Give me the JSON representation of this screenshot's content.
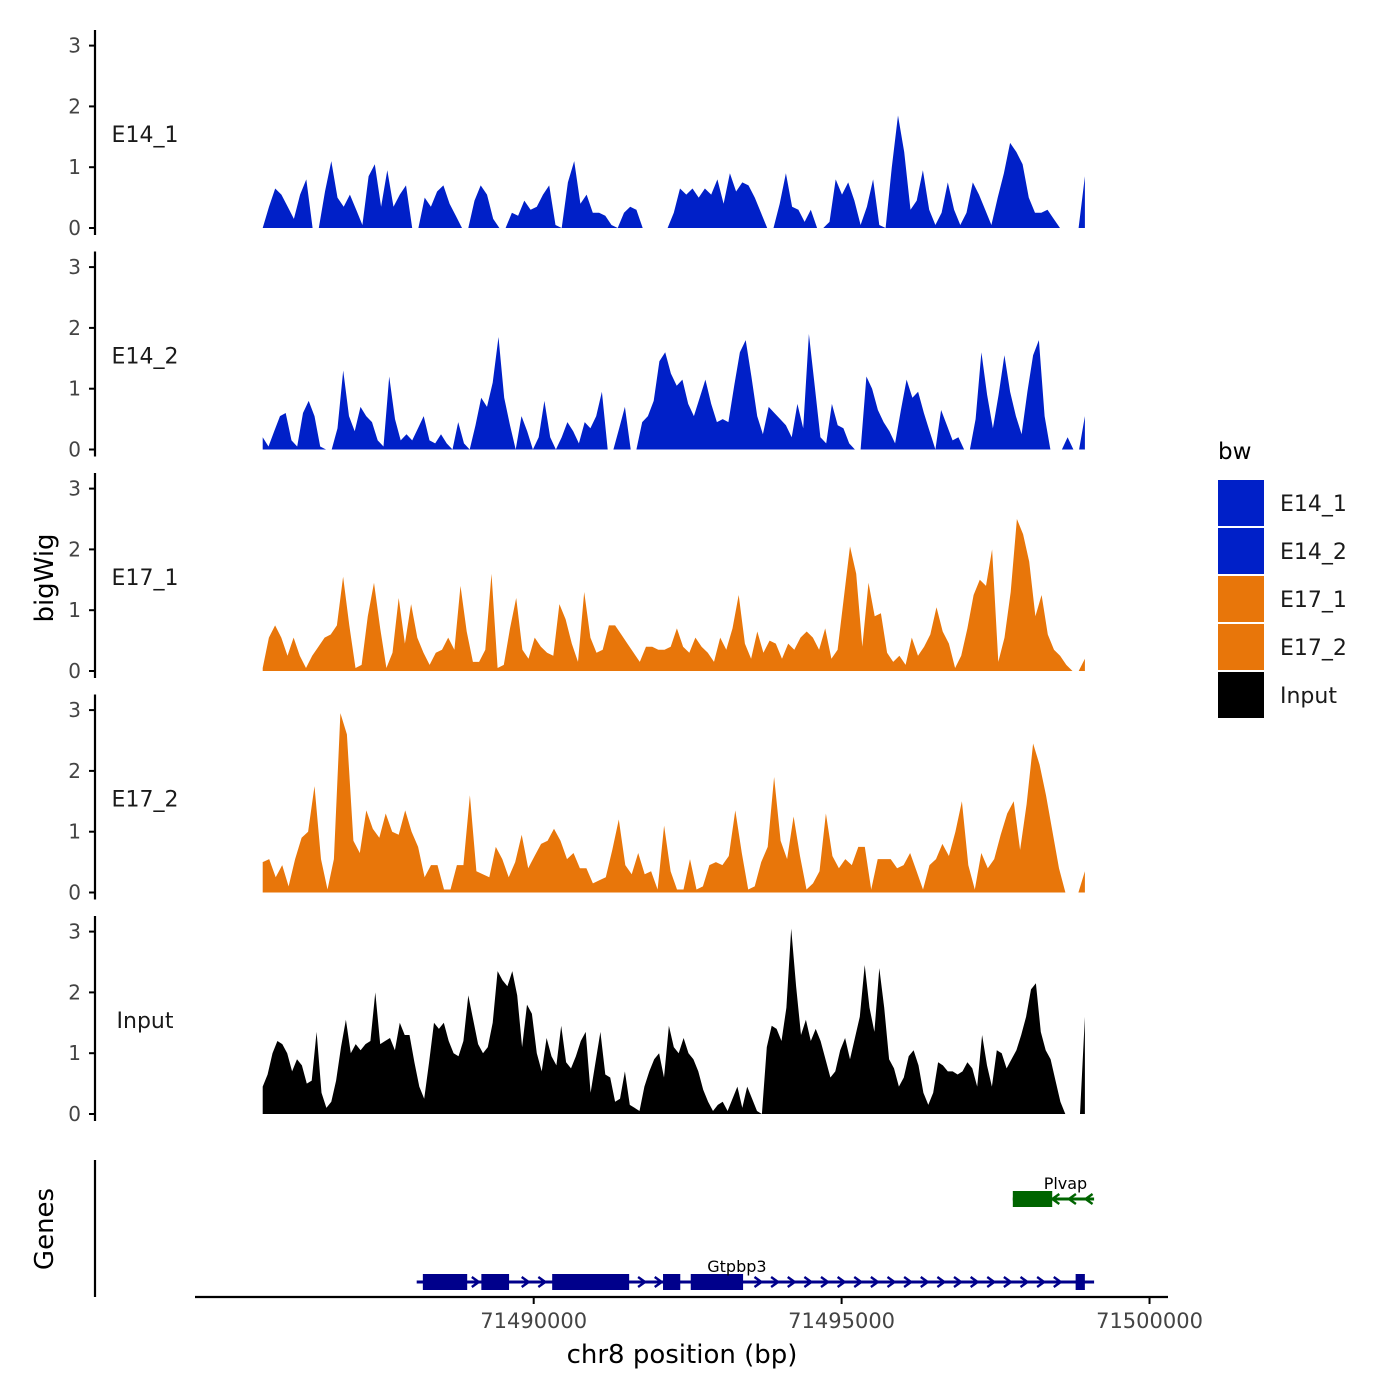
{
  "chart_data": {
    "type": "area",
    "chromosome": "chr8",
    "x_label": "chr8 position (bp)",
    "y_label": "bigWig",
    "genes_label": "Genes",
    "legend_title": "bw",
    "legend_position": "right",
    "x_domain": [
      71484500,
      71500300
    ],
    "x_ticks": [
      {
        "value": 71490000,
        "label": "71490000"
      },
      {
        "value": 71495000,
        "label": "71495000"
      },
      {
        "value": 71500000,
        "label": "71500000"
      }
    ],
    "y_ticks": [
      {
        "value": 0,
        "label": "0"
      },
      {
        "value": 1,
        "label": "1"
      },
      {
        "value": 2,
        "label": "2"
      },
      {
        "value": 3,
        "label": "3"
      }
    ],
    "ylim": [
      0,
      3.2
    ],
    "colors": {
      "E14": "#0020c8",
      "E17": "#e8760a",
      "Input": "#000000",
      "gene_plus": "#00008b",
      "gene_minus": "#006400"
    },
    "tracks": [
      {
        "name": "E14_1",
        "color": "#0020c8",
        "x_start": 71485600,
        "x_end": 71498950,
        "values": [
          0,
          0.35,
          0.65,
          0.55,
          0.35,
          0.15,
          0.55,
          0.8,
          0,
          0,
          0.6,
          1.1,
          0.5,
          0.35,
          0.55,
          0.3,
          0.05,
          0.85,
          1.05,
          0.35,
          0.95,
          0.35,
          0.55,
          0.7,
          0,
          0,
          0.5,
          0.35,
          0.6,
          0.7,
          0.4,
          0.2,
          0,
          0,
          0.45,
          0.7,
          0.55,
          0.15,
          0,
          0,
          0.25,
          0.2,
          0.45,
          0.3,
          0.35,
          0.55,
          0.7,
          0.05,
          0,
          0.75,
          1.1,
          0.4,
          0.55,
          0.25,
          0.25,
          0.2,
          0.05,
          0,
          0.25,
          0.35,
          0.3,
          0,
          0,
          0,
          0,
          0,
          0.25,
          0.65,
          0.55,
          0.65,
          0.5,
          0.65,
          0.55,
          0.8,
          0.4,
          0.9,
          0.6,
          0.75,
          0.7,
          0.5,
          0.25,
          0,
          0,
          0.4,
          0.9,
          0.35,
          0.3,
          0.1,
          0.3,
          0,
          0,
          0.1,
          0.8,
          0.55,
          0.75,
          0.45,
          0.05,
          0.35,
          0.8,
          0.05,
          0,
          1.0,
          1.85,
          1.25,
          0.3,
          0.45,
          0.95,
          0.3,
          0.05,
          0.25,
          0.75,
          0.3,
          0.05,
          0.25,
          0.75,
          0.55,
          0.3,
          0.05,
          0.5,
          0.9,
          1.4,
          1.25,
          1.05,
          0.5,
          0.25,
          0.25,
          0.3,
          0.15,
          0,
          0,
          0,
          0,
          0.85
        ]
      },
      {
        "name": "E14_2",
        "color": "#0020c8",
        "x_start": 71485600,
        "x_end": 71498950,
        "values": [
          0.2,
          0.05,
          0.3,
          0.55,
          0.6,
          0.15,
          0.05,
          0.6,
          0.8,
          0.55,
          0.05,
          0,
          0,
          0.35,
          1.3,
          0.55,
          0.3,
          0.7,
          0.55,
          0.45,
          0.15,
          0.05,
          1.2,
          0.5,
          0.15,
          0.25,
          0.15,
          0.35,
          0.55,
          0.15,
          0.1,
          0.25,
          0.1,
          0,
          0.45,
          0.1,
          0,
          0.4,
          0.85,
          0.7,
          1.1,
          1.85,
          0.85,
          0.4,
          0,
          0.55,
          0.3,
          0,
          0.2,
          0.8,
          0.2,
          0,
          0.2,
          0.45,
          0.3,
          0.1,
          0.45,
          0.35,
          0.55,
          0.95,
          0,
          0,
          0.35,
          0.7,
          0,
          0,
          0.45,
          0.55,
          0.8,
          1.45,
          1.6,
          1.25,
          1.05,
          1.15,
          0.75,
          0.55,
          0.85,
          1.15,
          0.75,
          0.45,
          0.5,
          0.45,
          1.05,
          1.6,
          1.8,
          1.2,
          0.55,
          0.25,
          0.7,
          0.6,
          0.5,
          0.4,
          0.2,
          0.75,
          0.35,
          1.9,
          1.05,
          0.2,
          0.1,
          0.75,
          0.4,
          0.35,
          0.1,
          0,
          0,
          1.2,
          1.0,
          0.65,
          0.45,
          0.3,
          0.1,
          0.65,
          1.15,
          0.85,
          0.95,
          0.6,
          0.3,
          0,
          0.65,
          0.4,
          0.15,
          0.2,
          0,
          0,
          0.5,
          1.6,
          0.9,
          0.35,
          0.9,
          1.55,
          0.95,
          0.55,
          0.25,
          0.95,
          1.55,
          1.8,
          0.55,
          0,
          0,
          0,
          0.2,
          0,
          0,
          0.55
        ]
      },
      {
        "name": "E17_1",
        "color": "#e8760a",
        "x_start": 71485600,
        "x_end": 71498950,
        "values": [
          0.05,
          0.55,
          0.75,
          0.55,
          0.25,
          0.55,
          0.25,
          0.05,
          0.25,
          0.4,
          0.55,
          0.6,
          0.75,
          1.55,
          0.75,
          0.05,
          0.1,
          0.9,
          1.45,
          0.7,
          0.05,
          0.3,
          1.2,
          0.45,
          1.1,
          0.55,
          0.3,
          0.1,
          0.3,
          0.35,
          0.55,
          0.35,
          1.4,
          0.65,
          0.15,
          0.15,
          0.35,
          1.6,
          0.05,
          0.1,
          0.7,
          1.2,
          0.35,
          0.2,
          0.55,
          0.4,
          0.3,
          0.25,
          1.1,
          0.85,
          0.45,
          0.15,
          1.3,
          0.55,
          0.3,
          0.35,
          0.75,
          0.75,
          0.6,
          0.45,
          0.3,
          0.15,
          0.4,
          0.4,
          0.35,
          0.35,
          0.4,
          0.7,
          0.4,
          0.3,
          0.55,
          0.4,
          0.3,
          0.15,
          0.55,
          0.35,
          0.7,
          1.25,
          0.45,
          0.2,
          0.65,
          0.3,
          0.5,
          0.45,
          0.2,
          0.45,
          0.35,
          0.55,
          0.65,
          0.55,
          0.35,
          0.7,
          0.2,
          0.35,
          1.2,
          2.05,
          1.6,
          0.4,
          1.45,
          0.9,
          0.95,
          0.3,
          0.15,
          0.25,
          0.1,
          0.55,
          0.25,
          0.4,
          0.6,
          1.05,
          0.65,
          0.45,
          0.05,
          0.25,
          0.7,
          1.25,
          1.5,
          1.4,
          2.0,
          0.15,
          0.55,
          1.3,
          2.5,
          2.25,
          1.8,
          0.9,
          1.25,
          0.6,
          0.35,
          0.25,
          0.1,
          0,
          0,
          0.2
        ]
      },
      {
        "name": "E17_2",
        "color": "#e8760a",
        "x_start": 71485600,
        "x_end": 71498950,
        "values": [
          0.5,
          0.55,
          0.25,
          0.45,
          0.1,
          0.55,
          0.9,
          1.0,
          1.75,
          0.55,
          0.05,
          0.55,
          2.95,
          2.6,
          0.85,
          0.65,
          1.35,
          1.05,
          0.9,
          1.3,
          1.0,
          0.95,
          1.35,
          1.0,
          0.75,
          0.25,
          0.45,
          0.45,
          0.05,
          0.05,
          0.45,
          0.45,
          1.6,
          0.35,
          0.3,
          0.25,
          0.75,
          0.55,
          0.25,
          0.5,
          0.95,
          0.4,
          0.6,
          0.8,
          0.85,
          1.05,
          0.85,
          0.55,
          0.65,
          0.4,
          0.4,
          0.15,
          0.2,
          0.25,
          0.7,
          1.2,
          0.45,
          0.3,
          0.65,
          0.3,
          0.35,
          0.05,
          1.1,
          0.35,
          0.05,
          0.05,
          0.55,
          0.05,
          0.1,
          0.45,
          0.5,
          0.45,
          0.6,
          1.35,
          0.65,
          0.05,
          0.1,
          0.5,
          0.75,
          1.9,
          0.85,
          0.55,
          1.25,
          0.6,
          0.05,
          0.15,
          0.35,
          1.3,
          0.6,
          0.4,
          0.55,
          0.45,
          0.75,
          0.75,
          0.05,
          0.55,
          0.55,
          0.55,
          0.4,
          0.45,
          0.65,
          0.35,
          0.05,
          0.45,
          0.55,
          0.8,
          0.6,
          1.0,
          1.5,
          0.45,
          0.05,
          0.65,
          0.4,
          0.55,
          0.95,
          1.3,
          1.5,
          0.7,
          1.45,
          2.45,
          2.1,
          1.6,
          1.0,
          0.4,
          0,
          0,
          0,
          0.35
        ]
      },
      {
        "name": "Input",
        "color": "#000000",
        "x_start": 71485600,
        "x_end": 71498950,
        "values": [
          0.45,
          0.65,
          1.0,
          1.2,
          1.15,
          1.0,
          0.7,
          0.9,
          0.8,
          0.5,
          0.55,
          1.35,
          0.35,
          0.1,
          0.2,
          0.55,
          1.1,
          1.55,
          1.0,
          1.15,
          1.05,
          1.15,
          1.2,
          2.0,
          1.15,
          1.2,
          1.25,
          1.05,
          1.5,
          1.3,
          1.3,
          0.85,
          0.45,
          0.25,
          0.85,
          1.5,
          1.4,
          1.5,
          1.2,
          1.0,
          0.95,
          1.2,
          1.95,
          1.55,
          1.15,
          1.0,
          1.1,
          1.5,
          2.35,
          2.2,
          2.1,
          2.35,
          1.95,
          1.1,
          1.8,
          1.65,
          1.0,
          0.7,
          1.25,
          0.95,
          0.8,
          1.45,
          0.85,
          0.75,
          0.95,
          1.2,
          1.35,
          0.35,
          0.85,
          1.35,
          0.65,
          0.6,
          0.2,
          0.25,
          0.7,
          0.15,
          0.1,
          0.05,
          0.45,
          0.7,
          0.9,
          1.0,
          0.6,
          1.45,
          1.1,
          1.0,
          1.25,
          1.0,
          0.9,
          0.7,
          0.4,
          0.2,
          0.05,
          0.15,
          0.2,
          0.05,
          0.25,
          0.45,
          0.1,
          0.45,
          0.25,
          0.05,
          0,
          1.1,
          1.45,
          1.4,
          1.2,
          1.75,
          3.05,
          2.1,
          1.3,
          1.55,
          1.2,
          1.4,
          1.2,
          0.9,
          0.6,
          0.7,
          1.05,
          1.25,
          0.9,
          1.25,
          1.6,
          2.45,
          1.75,
          1.35,
          2.4,
          1.75,
          0.9,
          0.75,
          0.45,
          0.6,
          0.95,
          1.05,
          0.8,
          0.35,
          0.15,
          0.35,
          0.85,
          0.8,
          0.7,
          0.7,
          0.65,
          0.7,
          0.85,
          0.75,
          0.45,
          1.3,
          0.8,
          0.45,
          1.05,
          1.0,
          0.75,
          0.9,
          1.05,
          1.3,
          1.6,
          2.05,
          2.15,
          1.35,
          1.05,
          0.9,
          0.55,
          0.2,
          0,
          0,
          0,
          0,
          1.6
        ]
      }
    ],
    "genes": [
      {
        "name": "Plvap",
        "strand": "-",
        "color": "#006400",
        "start": 71497780,
        "end": 71499100,
        "exons": [
          {
            "start": 71497780,
            "end": 71498420
          }
        ]
      },
      {
        "name": "Gtpbp3",
        "strand": "+",
        "color": "#00008b",
        "start": 71488100,
        "end": 71499100,
        "exons": [
          {
            "start": 71488200,
            "end": 71488920
          },
          {
            "start": 71489150,
            "end": 71489600
          },
          {
            "start": 71490300,
            "end": 71491550
          },
          {
            "start": 71492100,
            "end": 71492380
          },
          {
            "start": 71492550,
            "end": 71493400
          },
          {
            "start": 71498800,
            "end": 71498950
          }
        ]
      }
    ]
  }
}
